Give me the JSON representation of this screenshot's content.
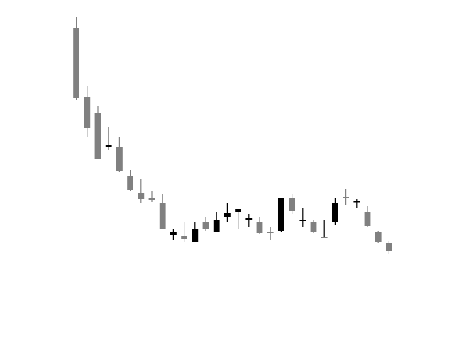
{
  "chart_data": {
    "type": "candlestick",
    "title": "",
    "xlabel": "",
    "ylabel": "",
    "grid": false,
    "legend": "none",
    "colors": {
      "up": "#000000",
      "down": "#808080"
    },
    "ylim": [
      0,
      410
    ],
    "candles": [
      {
        "open": 390,
        "high": 406,
        "low": 289,
        "close": 291
      },
      {
        "open": 293,
        "high": 308,
        "low": 236,
        "close": 249
      },
      {
        "open": 271,
        "high": 281,
        "low": 205,
        "close": 206
      },
      {
        "open": 223,
        "high": 251,
        "low": 218,
        "close": 225
      },
      {
        "open": 222,
        "high": 237,
        "low": 187,
        "close": 188
      },
      {
        "open": 182,
        "high": 190,
        "low": 160,
        "close": 162
      },
      {
        "open": 158,
        "high": 177,
        "low": 143,
        "close": 149
      },
      {
        "open": 150,
        "high": 161,
        "low": 145,
        "close": 148
      },
      {
        "open": 144,
        "high": 156,
        "low": 106,
        "close": 107
      },
      {
        "open": 98,
        "high": 107,
        "low": 91,
        "close": 103
      },
      {
        "open": 97,
        "high": 116,
        "low": 88,
        "close": 92
      },
      {
        "open": 89,
        "high": 117,
        "low": 89,
        "close": 106
      },
      {
        "open": 117,
        "high": 124,
        "low": 104,
        "close": 107
      },
      {
        "open": 102,
        "high": 131,
        "low": 102,
        "close": 119
      },
      {
        "open": 123,
        "high": 143,
        "low": 117,
        "close": 129
      },
      {
        "open": 130,
        "high": 135,
        "low": 107,
        "close": 135
      },
      {
        "open": 120,
        "high": 128,
        "low": 109,
        "close": 122
      },
      {
        "open": 116,
        "high": 124,
        "low": 100,
        "close": 101
      },
      {
        "open": 103,
        "high": 110,
        "low": 91,
        "close": 101
      },
      {
        "open": 104,
        "high": 151,
        "low": 102,
        "close": 150
      },
      {
        "open": 150,
        "high": 156,
        "low": 128,
        "close": 132
      },
      {
        "open": 118,
        "high": 136,
        "low": 110,
        "close": 120
      },
      {
        "open": 117,
        "high": 120,
        "low": 101,
        "close": 102
      },
      {
        "open": 95,
        "high": 120,
        "low": 95,
        "close": 96
      },
      {
        "open": 116,
        "high": 150,
        "low": 112,
        "close": 144
      },
      {
        "open": 152,
        "high": 163,
        "low": 141,
        "close": 150
      },
      {
        "open": 145,
        "high": 149,
        "low": 136,
        "close": 146
      },
      {
        "open": 130,
        "high": 139,
        "low": 109,
        "close": 111
      },
      {
        "open": 102,
        "high": 104,
        "low": 87,
        "close": 88
      },
      {
        "open": 87,
        "high": 90,
        "low": 71,
        "close": 76
      }
    ]
  }
}
